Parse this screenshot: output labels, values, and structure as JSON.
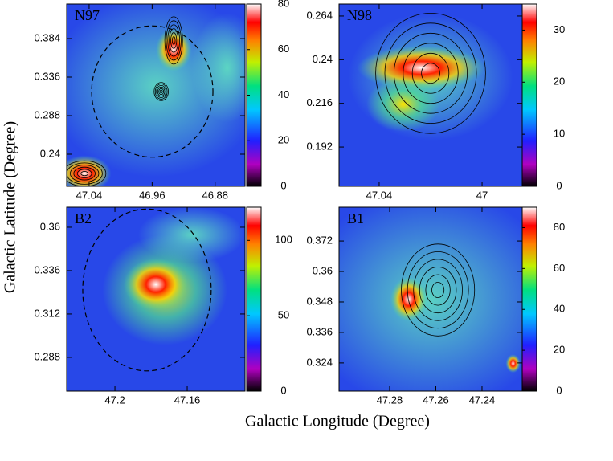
{
  "xlabel": "Galactic Longitude (Degree)",
  "ylabel": "Galactic Latitude (Degree)",
  "chart_data": [
    {
      "type": "image",
      "label": "N97",
      "xlim": [
        47.0685,
        46.842
      ],
      "ylim": [
        0.2,
        0.427
      ],
      "xticks": [
        47.04,
        46.96,
        46.88
      ],
      "yticks": [
        0.24,
        0.288,
        0.336,
        0.384
      ],
      "clim": [
        0,
        80
      ],
      "cticks": [
        0,
        20,
        40,
        60,
        80
      ]
    },
    {
      "type": "image",
      "label": "N98",
      "xlim": [
        47.0556,
        46.9844
      ],
      "ylim": [
        0.1704,
        0.2706
      ],
      "xticks": [
        47.04,
        47
      ],
      "yticks": [
        0.192,
        0.216,
        0.24,
        0.264
      ],
      "clim": [
        0,
        35
      ],
      "cticks": [
        0,
        10,
        20,
        30
      ]
    },
    {
      "type": "image",
      "label": "B2",
      "xlim": [
        47.2267,
        47.128
      ],
      "ylim": [
        0.2693,
        0.3711
      ],
      "xticks": [
        47.2,
        47.16
      ],
      "yticks": [
        0.288,
        0.312,
        0.336,
        0.36
      ],
      "clim": [
        0,
        122
      ],
      "cticks": [
        0,
        50,
        100
      ]
    },
    {
      "type": "image",
      "label": "B1",
      "xlim": [
        47.3019,
        47.2226
      ],
      "ylim": [
        0.3129,
        0.3853
      ],
      "xticks": [
        47.28,
        47.26,
        47.24
      ],
      "yticks": [
        0.324,
        0.336,
        0.348,
        0.36,
        0.372
      ],
      "clim": [
        0,
        90
      ],
      "cticks": [
        0,
        20,
        40,
        60,
        80
      ]
    }
  ]
}
